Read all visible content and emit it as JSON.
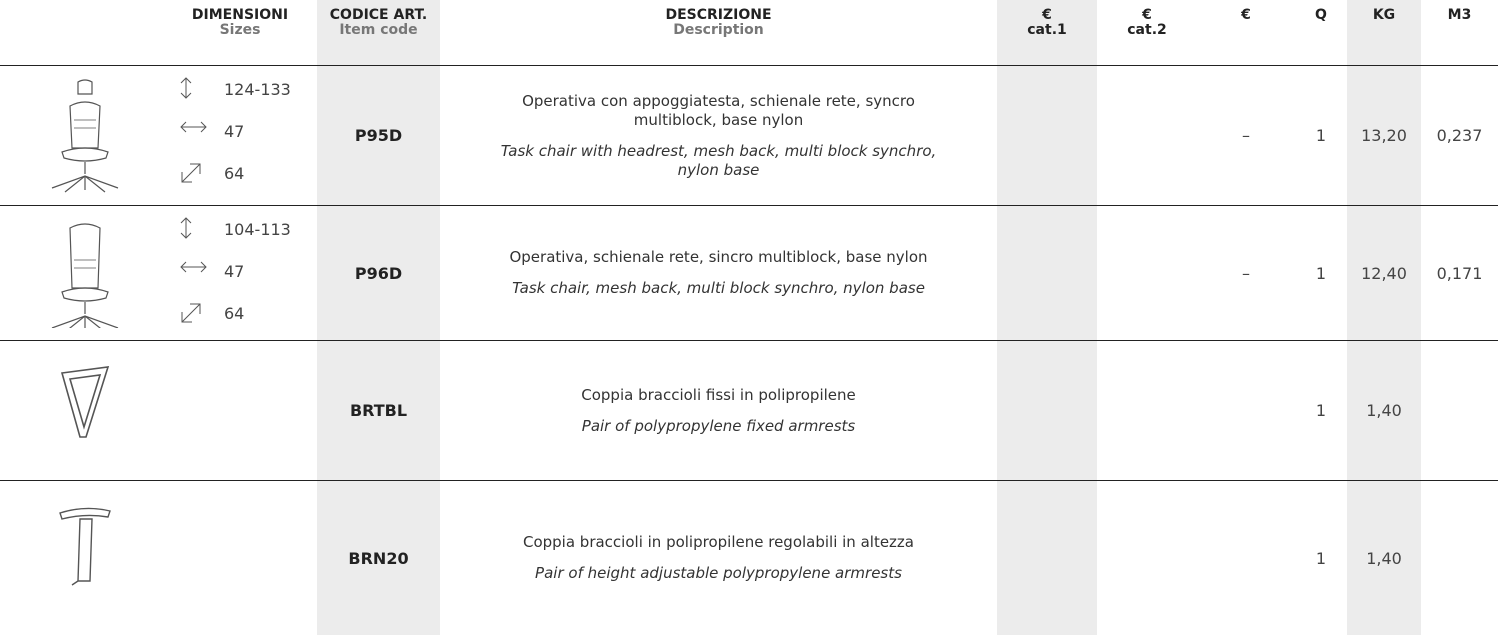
{
  "header": [
    {
      "title": "DIMENSIONI",
      "subtitle": "Sizes"
    },
    {
      "title": "CODICE ART.",
      "subtitle": "Item code"
    },
    {
      "title": "DESCRIZIONE",
      "subtitle": "Description"
    },
    {
      "title": "€",
      "subtitle": "cat.1"
    },
    {
      "title": "€",
      "subtitle": "cat.2"
    },
    {
      "title": "€"
    },
    {
      "title": "Q"
    },
    {
      "title": "KG"
    },
    {
      "title": "M3"
    }
  ],
  "rows": [
    {
      "dimensions": [
        "124-133",
        "47",
        "64"
      ],
      "code": "P95D",
      "description_it": "Operativa con appoggiatesta, schienale rete, syncro multiblock, base nylon",
      "description_en": "Task chair with headrest, mesh back, multi block synchro, nylon base",
      "price": "–",
      "q": 1,
      "kg": "13,20",
      "m3": "0,237"
    },
    {
      "dimensions": [
        "104-113",
        "47",
        "64"
      ],
      "code": "P96D",
      "description_it": "Operativa, schienale rete, sincro multiblock, base nylon",
      "description_en": "Task chair, mesh back, multi block synchro, nylon base",
      "price": "–",
      "q": 1,
      "kg": "12,40",
      "m3": "0,171"
    },
    {
      "code": "BRTBL",
      "description_it": "Coppia braccioli fissi in polipropilene",
      "description_en": "Pair of polypropylene fixed armrests",
      "q": 1,
      "kg": "1,40"
    },
    {
      "code": "BRN20",
      "description_it": "Coppia braccioli in polipropilene regolabili in altezza",
      "description_en": "Pair of height adjustable polypropylene armrests",
      "q": 1,
      "kg": "1,40"
    }
  ]
}
